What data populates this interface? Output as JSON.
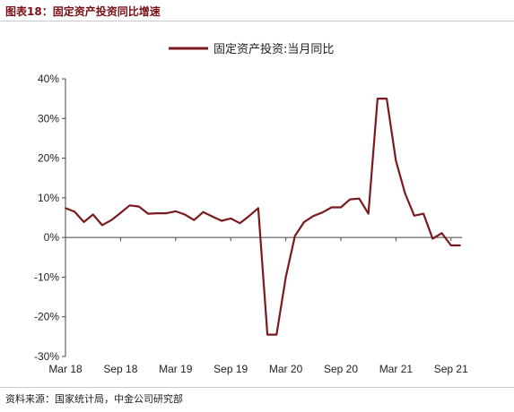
{
  "figure_title": "图表18：固定资产投资同比增速",
  "source_note": "资料来源：国家统计局，中金公司研究部",
  "chart_data": {
    "type": "line",
    "title": "",
    "xlabel": "",
    "ylabel": "",
    "ylim": [
      -30,
      40
    ],
    "yticks": [
      -30,
      -20,
      -10,
      0,
      10,
      20,
      30,
      40
    ],
    "ytick_labels": [
      "-30%",
      "-20%",
      "-10%",
      "0%",
      "10%",
      "20%",
      "30%",
      "40%"
    ],
    "xtick_labels": [
      "Mar 18",
      "Sep 18",
      "Mar 19",
      "Sep 19",
      "Mar 20",
      "Sep 20",
      "Mar 21",
      "Sep 21"
    ],
    "x": [
      "2018-03",
      "2018-04",
      "2018-05",
      "2018-06",
      "2018-07",
      "2018-08",
      "2018-09",
      "2018-10",
      "2018-11",
      "2018-12",
      "2019-01",
      "2019-02",
      "2019-03",
      "2019-04",
      "2019-05",
      "2019-06",
      "2019-07",
      "2019-08",
      "2019-09",
      "2019-10",
      "2019-11",
      "2019-12",
      "2020-01",
      "2020-02",
      "2020-03",
      "2020-04",
      "2020-05",
      "2020-06",
      "2020-07",
      "2020-08",
      "2020-09",
      "2020-10",
      "2020-11",
      "2020-12",
      "2021-01",
      "2021-02",
      "2021-03",
      "2021-04",
      "2021-05",
      "2021-06",
      "2021-07",
      "2021-08",
      "2021-09",
      "2021-10"
    ],
    "series": [
      {
        "name": "固定资产投资:当月同比",
        "color": "#7b1a1e",
        "values": [
          7.4,
          6.5,
          3.9,
          5.8,
          3.1,
          4.4,
          6.2,
          8.1,
          7.8,
          6.0,
          6.1,
          6.1,
          6.6,
          5.8,
          4.4,
          6.4,
          5.3,
          4.2,
          4.8,
          3.6,
          5.4,
          7.4,
          -24.5,
          -24.5,
          -10.0,
          0.4,
          3.9,
          5.4,
          6.3,
          7.6,
          7.6,
          9.6,
          9.8,
          6.0,
          35.0,
          35.0,
          19.3,
          11.1,
          5.5,
          6.0,
          -0.3,
          1.1,
          -2.0,
          -2.0
        ]
      }
    ],
    "legend": "top-center",
    "grid": false
  }
}
